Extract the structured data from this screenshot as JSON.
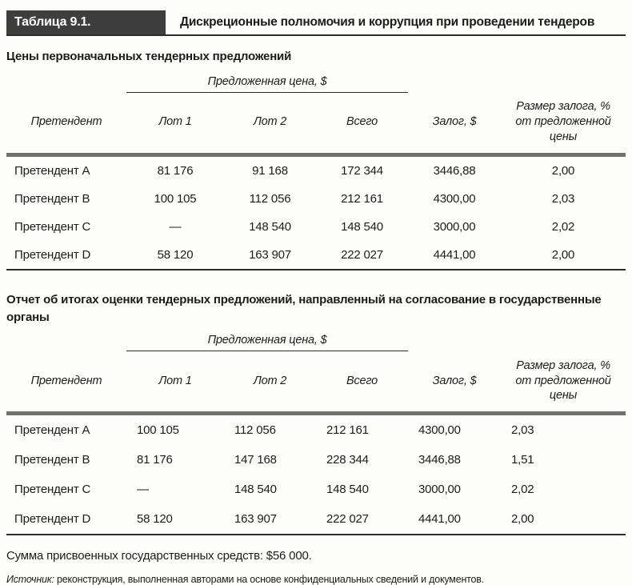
{
  "page": {
    "header": {
      "label": "Таблица 9.1.",
      "title": "Дискреционные полномочия и коррупция при проведении тендеров"
    },
    "headers": {
      "bidder": "Претендент",
      "spanner": "Предложенная цена, $",
      "lot1": "Лот 1",
      "lot2": "Лот 2",
      "total": "Всего",
      "deposit": "Залог, $",
      "deposit_pct_line1": "Размер залога, %",
      "deposit_pct_line2": "от предложенной цены"
    },
    "table1": {
      "caption": "Цены первоначальных тендерных предложений",
      "rows": [
        [
          "Претендент A",
          "81 176",
          "91 168",
          "172 344",
          "3446,88",
          "2,00"
        ],
        [
          "Претендент B",
          "100 105",
          "112 056",
          "212 161",
          "4300,00",
          "2,03"
        ],
        [
          "Претендент C",
          "—",
          "148 540",
          "148 540",
          "3000,00",
          "2,02"
        ],
        [
          "Претендент D",
          "58 120",
          "163 907",
          "222 027",
          "4441,00",
          "2,00"
        ]
      ]
    },
    "table2": {
      "caption": "Отчет об итогах оценки тендерных предложений, направленный на согласование в государственные органы",
      "rows": [
        [
          "Претендент A",
          "100 105",
          "112 056",
          "212 161",
          "4300,00",
          "2,03"
        ],
        [
          "Претендент B",
          "81 176",
          "147 168",
          "228 344",
          "3446,88",
          "1,51"
        ],
        [
          "Претендент C",
          "—",
          "148 540",
          "148 540",
          "3000,00",
          "2,02"
        ],
        [
          "Претендент D",
          "58 120",
          "163 907",
          "222 027",
          "4441,00",
          "2,00"
        ]
      ]
    },
    "footer": {
      "sum_note": "Сумма присвоенных государственных средств: $56 000.",
      "source_label": "Источник:",
      "source_text": "реконструкция, выполненная авторами на основе конфиденциальных сведений и документов."
    },
    "colors": {
      "label_box": "#3e3e3e",
      "thick_rule": "#717171",
      "text": "#1c1c1c"
    }
  }
}
